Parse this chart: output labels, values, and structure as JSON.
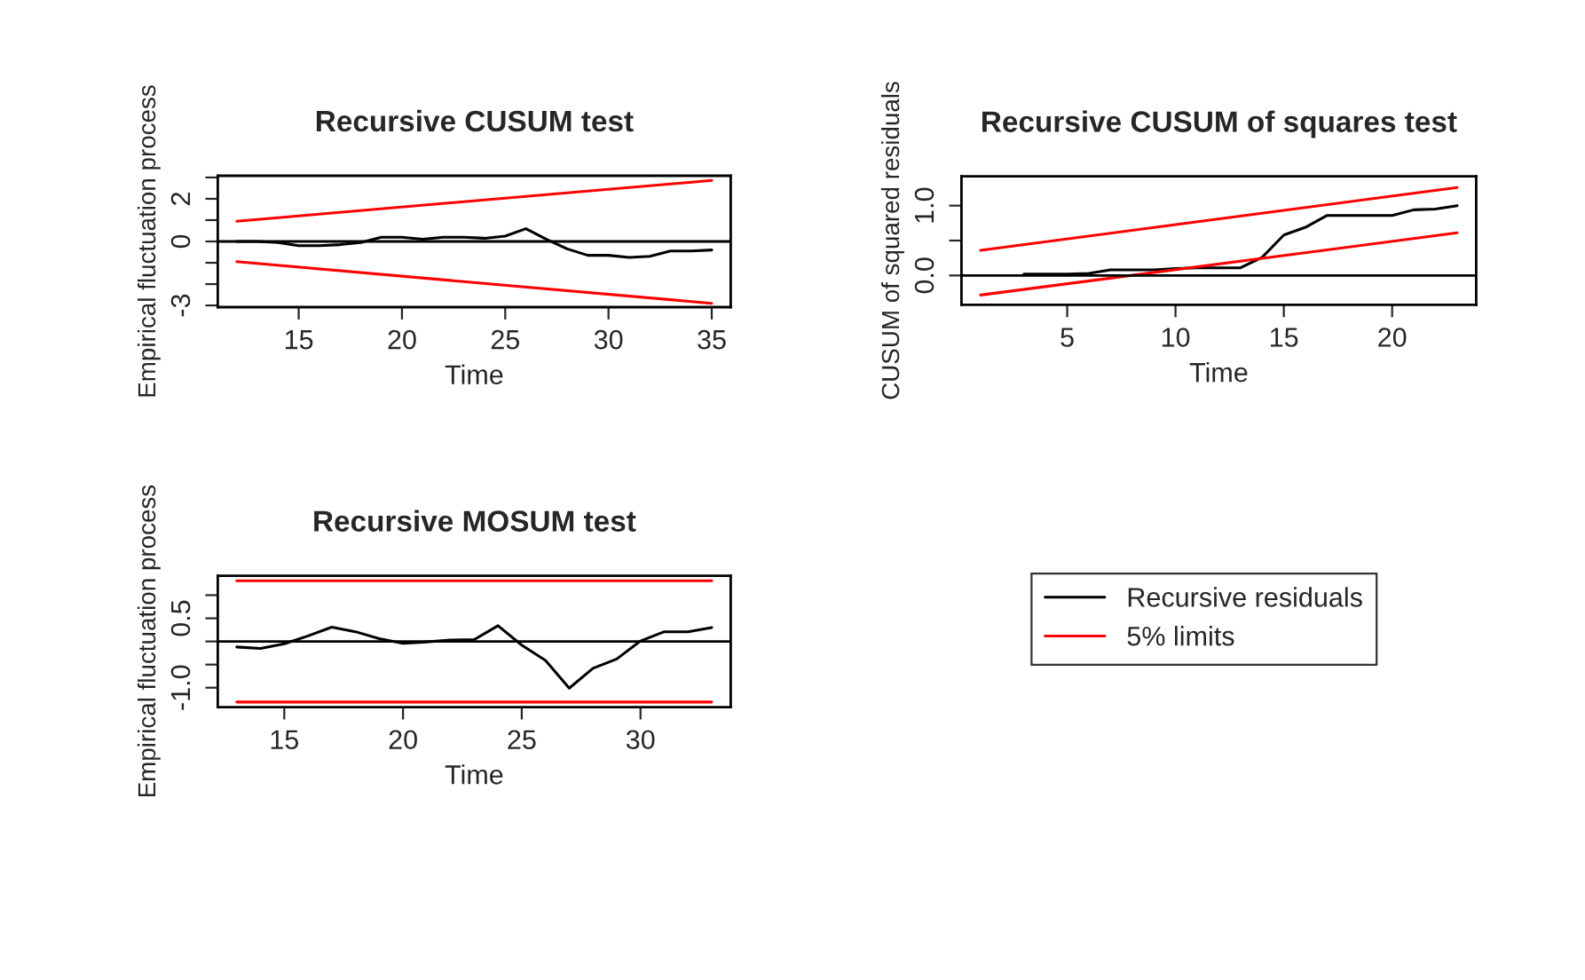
{
  "chart_data": [
    {
      "type": "line",
      "title": "Recursive CUSUM test",
      "xlabel": "Time",
      "ylabel": "Empirical fluctuation process",
      "xlim": [
        11.08,
        35.92
      ],
      "ylim": [
        -3.08,
        3.08
      ],
      "xticks": [
        15,
        20,
        25,
        30,
        35
      ],
      "yticks": [
        {
          "value": -3,
          "label": "-3"
        },
        {
          "value": -2,
          "label": null
        },
        {
          "value": -1,
          "label": null
        },
        {
          "value": 0,
          "label": "0"
        },
        {
          "value": 1,
          "label": null
        },
        {
          "value": 2,
          "label": "2"
        },
        {
          "value": 3,
          "label": null
        }
      ],
      "grid": false,
      "ref_lines": [
        {
          "axis": "y",
          "value": 0,
          "color": "#000000"
        }
      ],
      "series": [
        {
          "color": "#000000",
          "x": [
            12,
            13,
            14,
            15,
            16,
            17,
            18,
            19,
            20,
            21,
            22,
            23,
            24,
            25,
            26,
            27,
            28,
            29,
            30,
            31,
            32,
            33,
            34,
            35
          ],
          "values": [
            0,
            0,
            -0.05,
            -0.2,
            -0.2,
            -0.15,
            -0.05,
            0.2,
            0.2,
            0.1,
            0.2,
            0.2,
            0.15,
            0.25,
            0.6,
            0.1,
            -0.35,
            -0.65,
            -0.65,
            -0.75,
            -0.7,
            -0.45,
            -0.45,
            -0.4
          ]
        },
        {
          "color": "#ff0000",
          "x": [
            12,
            35
          ],
          "values": [
            0.95,
            2.86
          ]
        },
        {
          "color": "#ff0000",
          "x": [
            12,
            35
          ],
          "values": [
            -0.95,
            -2.9
          ]
        }
      ]
    },
    {
      "type": "line",
      "title": "Recursive CUSUM of squares test",
      "xlabel": "Time",
      "ylabel": "CUSUM of squared residuals",
      "xlim": [
        0.12,
        23.88
      ],
      "ylim": [
        -0.42,
        1.42
      ],
      "xticks": [
        5,
        10,
        15,
        20
      ],
      "yticks": [
        {
          "value": 0,
          "label": "0.0"
        },
        {
          "value": 0.5,
          "label": null
        },
        {
          "value": 1,
          "label": "1.0"
        }
      ],
      "grid": false,
      "ref_lines": [
        {
          "axis": "y",
          "value": 0,
          "color": "#000000"
        }
      ],
      "series": [
        {
          "color": "#000000",
          "x": [
            3,
            4,
            5,
            6,
            7,
            8,
            9,
            10,
            11,
            12,
            13,
            14,
            15,
            16,
            17,
            18,
            19,
            20,
            21,
            22,
            23
          ],
          "values": [
            0.02,
            0.02,
            0.02,
            0.03,
            0.08,
            0.08,
            0.08,
            0.1,
            0.11,
            0.11,
            0.11,
            0.26,
            0.58,
            0.69,
            0.86,
            0.86,
            0.86,
            0.86,
            0.94,
            0.95,
            1.0
          ]
        },
        {
          "color": "#ff0000",
          "x": [
            1,
            23
          ],
          "values": [
            0.36,
            1.26
          ]
        },
        {
          "color": "#ff0000",
          "x": [
            1,
            23
          ],
          "values": [
            -0.28,
            0.61
          ]
        }
      ]
    },
    {
      "type": "line",
      "title": "Recursive MOSUM test",
      "xlabel": "Time",
      "ylabel": "Empirical fluctuation process",
      "xlim": [
        12.2,
        33.8
      ],
      "ylim": [
        -1.42,
        1.42
      ],
      "xticks": [
        15,
        20,
        25,
        30
      ],
      "yticks": [
        {
          "value": -1,
          "label": "-1.0"
        },
        {
          "value": -0.5,
          "label": null
        },
        {
          "value": 0,
          "label": null
        },
        {
          "value": 0.5,
          "label": "0.5"
        },
        {
          "value": 1,
          "label": null
        }
      ],
      "grid": false,
      "legend": "right",
      "ref_lines": [
        {
          "axis": "y",
          "value": 0,
          "color": "#000000"
        }
      ],
      "series": [
        {
          "name": "Recursive residuals",
          "color": "#000000",
          "x": [
            13,
            14,
            15,
            16,
            17,
            18,
            19,
            20,
            21,
            22,
            23,
            24,
            25,
            26,
            27,
            28,
            29,
            30,
            31,
            32,
            33
          ],
          "values": [
            -0.12,
            -0.15,
            -0.05,
            0.12,
            0.31,
            0.21,
            0.06,
            -0.04,
            -0.01,
            0.03,
            0.04,
            0.34,
            -0.08,
            -0.41,
            -1.01,
            -0.58,
            -0.38,
            0.01,
            0.21,
            0.21,
            0.3
          ]
        },
        {
          "name": "5% limits",
          "color": "#ff0000",
          "x": [
            13,
            33
          ],
          "values": [
            1.31,
            1.31
          ]
        },
        {
          "color": "#ff0000",
          "x": [
            13,
            33
          ],
          "values": [
            -1.31,
            -1.31
          ]
        }
      ]
    }
  ]
}
